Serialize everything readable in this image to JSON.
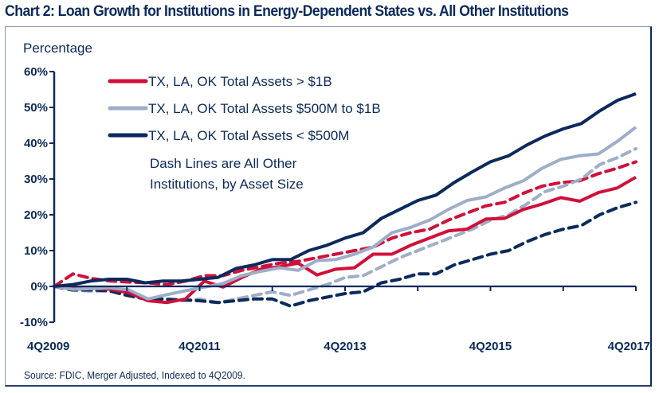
{
  "chart_data": {
    "type": "line",
    "title": "Chart 2: Loan Growth for Institutions in Energy-Dependent States vs. All Other Institutions",
    "ylabel": "Percentage",
    "xlabel": "",
    "source": "Source: FDIC, Merger Adjusted, Indexed to 4Q2009.",
    "ylim": [
      -10,
      60
    ],
    "yticks": [
      -10,
      0,
      10,
      20,
      30,
      40,
      50,
      60
    ],
    "ytick_labels": [
      "-10%",
      "0%",
      "10%",
      "20%",
      "30%",
      "40%",
      "50%",
      "60%"
    ],
    "xtick_labels": [
      "4Q2009",
      "4Q2011",
      "4Q2013",
      "4Q2015",
      "4Q2017"
    ],
    "x_range_quarters": [
      "4Q2009",
      "4Q2017"
    ],
    "grid": false,
    "legend_position": "top-left",
    "legend_note": "Dash Lines are All Other Institutions, by Asset Size",
    "series": [
      {
        "name": "TX, LA, OK Total Assets > $1B",
        "color": "#d0103a",
        "style": "solid",
        "in_legend": true,
        "values": [
          0,
          -0.3,
          -0.5,
          -0.8,
          -1.8,
          -4.0,
          -4.5,
          -3.5,
          1.5,
          -0.2,
          2.5,
          4.8,
          5.5,
          6.5,
          3.2,
          4.8,
          5.2,
          9.0,
          9.0,
          11.5,
          13.5,
          15.5,
          16.0,
          18.8,
          19.0,
          21.5,
          23.0,
          24.8,
          23.8,
          26.2,
          27.5,
          30.5
        ]
      },
      {
        "name": "TX, LA, OK Total Assets $500M to $1B",
        "color": "#9eadc8",
        "style": "solid",
        "in_legend": true,
        "values": [
          0,
          -0.8,
          -0.6,
          -0.4,
          -1.0,
          -3.5,
          -2.3,
          -1.2,
          -0.2,
          0.8,
          3.0,
          4.2,
          5.2,
          4.5,
          7.2,
          7.5,
          9.0,
          11.0,
          15.0,
          16.5,
          18.5,
          21.5,
          24.0,
          25.0,
          27.5,
          29.5,
          33.0,
          35.5,
          36.5,
          37.0,
          40.5,
          44.5
        ]
      },
      {
        "name": "TX, LA, OK Total Assets < $500M",
        "color": "#0b2a5c",
        "style": "solid",
        "in_legend": true,
        "values": [
          0,
          0.5,
          1.5,
          2.0,
          2.0,
          1.0,
          1.5,
          1.5,
          2.0,
          2.5,
          5.0,
          6.0,
          7.5,
          7.5,
          10.0,
          11.5,
          13.5,
          15.0,
          19.0,
          21.5,
          24.0,
          25.5,
          29.0,
          32.0,
          34.8,
          36.5,
          39.5,
          42.0,
          44.0,
          45.5,
          49.0,
          52.0,
          53.8
        ]
      },
      {
        "name": "All Other Institutions > $1B",
        "color": "#d0103a",
        "style": "dashed",
        "in_legend": false,
        "values": [
          0,
          3.5,
          2.2,
          1.5,
          1.2,
          1.0,
          0.5,
          1.5,
          3.0,
          3.0,
          4.5,
          5.5,
          6.5,
          7.0,
          8.0,
          9.0,
          10.0,
          11.0,
          13.5,
          15.0,
          16.0,
          18.5,
          20.5,
          22.5,
          23.5,
          26.0,
          28.0,
          29.0,
          29.5,
          31.5,
          33.0,
          34.8
        ]
      },
      {
        "name": "All Other Institutions $500M to $1B",
        "color": "#9eadc8",
        "style": "dashed",
        "in_legend": false,
        "values": [
          0,
          -1.0,
          -1.3,
          -1.3,
          -2.0,
          -3.5,
          -3.8,
          -4.0,
          -3.5,
          -4.5,
          -3.5,
          -2.5,
          -1.5,
          -2.5,
          -1.0,
          0.5,
          2.5,
          3.0,
          5.5,
          8.0,
          10.0,
          12.0,
          14.0,
          16.0,
          18.5,
          20.0,
          23.0,
          26.5,
          28.0,
          30.0,
          34.0,
          36.0,
          38.5
        ]
      },
      {
        "name": "All Other Institutions < $500M",
        "color": "#0b2a5c",
        "style": "dashed",
        "in_legend": false,
        "values": [
          0,
          -1.0,
          -1.0,
          -1.2,
          -2.5,
          -3.5,
          -3.5,
          -3.8,
          -4.0,
          -4.5,
          -4.0,
          -3.5,
          -3.5,
          -5.5,
          -4.0,
          -3.0,
          -2.0,
          -1.5,
          1.0,
          2.0,
          3.5,
          3.5,
          6.0,
          7.5,
          9.0,
          10.0,
          12.5,
          14.5,
          16.0,
          17.0,
          20.0,
          22.0,
          23.5
        ]
      }
    ]
  }
}
